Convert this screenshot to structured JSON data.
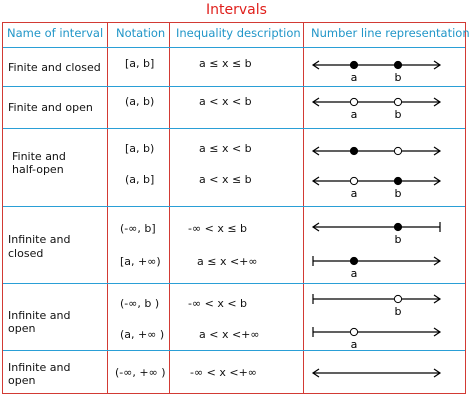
{
  "title": "Intervals",
  "header": {
    "name": "Name of interval",
    "notation": "Notation",
    "inequality": "Inequality description",
    "numberline": "Number line representation"
  },
  "rows": [
    {
      "name_lines": [
        "Finite and closed"
      ],
      "notation": [
        "[a, b]"
      ],
      "inequality": [
        "a ≤ x ≤ b"
      ],
      "lines": [
        {
          "left": "arrow",
          "right": "arrow",
          "a": "filled",
          "b": "filled",
          "a_label": "a",
          "b_label": "b"
        }
      ]
    },
    {
      "name_lines": [
        "Finite and open"
      ],
      "notation": [
        "(a, b)"
      ],
      "inequality": [
        "a < x < b"
      ],
      "lines": [
        {
          "left": "arrow",
          "right": "arrow",
          "a": "open",
          "b": "open",
          "a_label": "a",
          "b_label": "b"
        }
      ]
    },
    {
      "name_lines": [
        "Finite and",
        "half-open"
      ],
      "notation": [
        "[a, b)",
        "(a, b]"
      ],
      "inequality": [
        "a ≤ x < b",
        "a < x ≤ b"
      ],
      "lines": [
        {
          "left": "arrow",
          "right": "arrow",
          "a": "filled",
          "b": "open",
          "a_label": "",
          "b_label": ""
        },
        {
          "left": "arrow",
          "right": "arrow",
          "a": "open",
          "b": "filled",
          "a_label": "a",
          "b_label": "b"
        }
      ]
    },
    {
      "name_lines": [
        "Infinite and",
        "closed"
      ],
      "notation": [
        "(-∞, b]",
        "[a, +∞)"
      ],
      "inequality": [
        "-∞ < x ≤ b",
        "a ≤ x <+∞"
      ],
      "lines": [
        {
          "left": "arrow",
          "right": "bar",
          "a": "none",
          "b": "filled",
          "a_label": "",
          "b_label": "b"
        },
        {
          "left": "bar",
          "right": "arrow",
          "a": "filled",
          "b": "none",
          "a_label": "a",
          "b_label": ""
        }
      ]
    },
    {
      "name_lines": [
        "Infinite and",
        "open"
      ],
      "notation": [
        "(-∞, b )",
        "(a, +∞ )"
      ],
      "inequality": [
        "-∞ < x < b",
        "a < x <+∞"
      ],
      "lines": [
        {
          "left": "bar",
          "right": "arrow",
          "a": "none",
          "b": "open",
          "a_label": "",
          "b_label": "b"
        },
        {
          "left": "bar",
          "right": "arrow",
          "a": "open",
          "b": "none",
          "a_label": "a",
          "b_label": ""
        }
      ]
    },
    {
      "name_lines": [
        "Infinite and",
        "open"
      ],
      "notation": [
        "(-∞, +∞ )"
      ],
      "inequality": [
        "-∞ < x <+∞"
      ],
      "lines": [
        {
          "left": "arrow",
          "right": "arrow",
          "a": "none",
          "b": "none",
          "a_label": "",
          "b_label": ""
        }
      ]
    }
  ]
}
